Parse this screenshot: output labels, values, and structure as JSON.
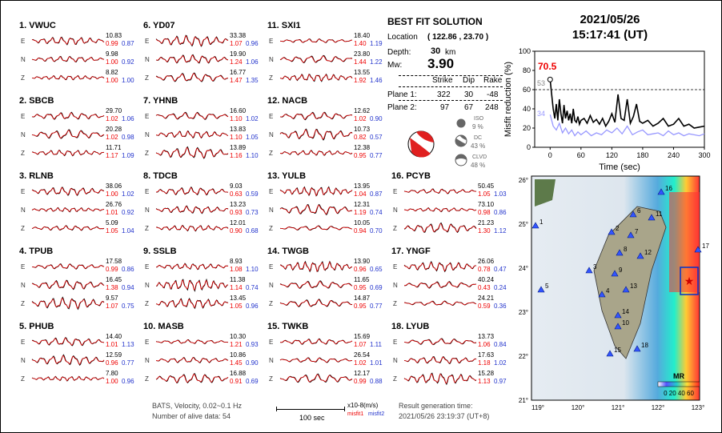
{
  "stations": [
    {
      "title": "1.  VWUC",
      "comps": [
        {
          "c": "E",
          "amp": "10.83",
          "m1": "0.99",
          "m2": "0.87"
        },
        {
          "c": "N",
          "amp": "9.98",
          "m1": "1.00",
          "m2": "0.92"
        },
        {
          "c": "Z",
          "amp": "8.82",
          "m1": "1.00",
          "m2": "1.00"
        }
      ]
    },
    {
      "title": "2.  SBCB",
      "comps": [
        {
          "c": "E",
          "amp": "29.70",
          "m1": "1.02",
          "m2": "1.06"
        },
        {
          "c": "N",
          "amp": "20.28",
          "m1": "1.02",
          "m2": "0.98"
        },
        {
          "c": "Z",
          "amp": "11.71",
          "m1": "1.17",
          "m2": "1.09"
        }
      ]
    },
    {
      "title": "3.  RLNB",
      "comps": [
        {
          "c": "E",
          "amp": "38.06",
          "m1": "1.00",
          "m2": "1.02"
        },
        {
          "c": "N",
          "amp": "26.76",
          "m1": "1.01",
          "m2": "0.92"
        },
        {
          "c": "Z",
          "amp": "5.09",
          "m1": "1.05",
          "m2": "1.04"
        }
      ]
    },
    {
      "title": "4.  TPUB",
      "comps": [
        {
          "c": "E",
          "amp": "17.58",
          "m1": "0.99",
          "m2": "0.86"
        },
        {
          "c": "N",
          "amp": "16.45",
          "m1": "1.38",
          "m2": "0.94"
        },
        {
          "c": "Z",
          "amp": "9.57",
          "m1": "1.07",
          "m2": "0.75"
        }
      ]
    },
    {
      "title": "5.  PHUB",
      "comps": [
        {
          "c": "E",
          "amp": "14.40",
          "m1": "1.01",
          "m2": "1.13"
        },
        {
          "c": "N",
          "amp": "12.59",
          "m1": "0.96",
          "m2": "0.77"
        },
        {
          "c": "Z",
          "amp": "7.80",
          "m1": "1.00",
          "m2": "0.96"
        }
      ]
    },
    {
      "title": "6.  YD07",
      "comps": [
        {
          "c": "E",
          "amp": "33.38",
          "m1": "1.07",
          "m2": "0.96"
        },
        {
          "c": "N",
          "amp": "19.90",
          "m1": "1.24",
          "m2": "1.06"
        },
        {
          "c": "Z",
          "amp": "16.77",
          "m1": "1.47",
          "m2": "1.35"
        }
      ]
    },
    {
      "title": "7.  YHNB",
      "comps": [
        {
          "c": "E",
          "amp": "16.60",
          "m1": "1.10",
          "m2": "1.02"
        },
        {
          "c": "N",
          "amp": "13.83",
          "m1": "1.10",
          "m2": "1.05"
        },
        {
          "c": "Z",
          "amp": "13.89",
          "m1": "1.16",
          "m2": "1.10"
        }
      ]
    },
    {
      "title": "8.  TDCB",
      "comps": [
        {
          "c": "E",
          "amp": "9.03",
          "m1": "0.63",
          "m2": "0.59"
        },
        {
          "c": "N",
          "amp": "13.23",
          "m1": "0.93",
          "m2": "0.73"
        },
        {
          "c": "Z",
          "amp": "12.01",
          "m1": "0.90",
          "m2": "0.68"
        }
      ]
    },
    {
      "title": "9.  SSLB",
      "comps": [
        {
          "c": "E",
          "amp": "8.93",
          "m1": "1.08",
          "m2": "1.10"
        },
        {
          "c": "N",
          "amp": "11.38",
          "m1": "1.14",
          "m2": "0.74"
        },
        {
          "c": "Z",
          "amp": "13.45",
          "m1": "1.05",
          "m2": "0.96"
        }
      ]
    },
    {
      "title": "10.  MASB",
      "comps": [
        {
          "c": "E",
          "amp": "10.30",
          "m1": "1.21",
          "m2": "0.93"
        },
        {
          "c": "N",
          "amp": "10.86",
          "m1": "1.45",
          "m2": "0.90"
        },
        {
          "c": "Z",
          "amp": "16.88",
          "m1": "0.91",
          "m2": "0.69"
        }
      ]
    },
    {
      "title": "11.  SXI1",
      "comps": [
        {
          "c": "E",
          "amp": "18.40",
          "m1": "1.40",
          "m2": "1.19"
        },
        {
          "c": "N",
          "amp": "23.80",
          "m1": "1.44",
          "m2": "1.22"
        },
        {
          "c": "Z",
          "amp": "13.55",
          "m1": "1.92",
          "m2": "1.46"
        }
      ]
    },
    {
      "title": "12.  NACB",
      "comps": [
        {
          "c": "E",
          "amp": "12.62",
          "m1": "1.02",
          "m2": "0.90"
        },
        {
          "c": "N",
          "amp": "10.73",
          "m1": "0.82",
          "m2": "0.57"
        },
        {
          "c": "Z",
          "amp": "12.38",
          "m1": "0.95",
          "m2": "0.77"
        }
      ]
    },
    {
      "title": "13.  YULB",
      "comps": [
        {
          "c": "E",
          "amp": "13.95",
          "m1": "1.04",
          "m2": "0.87"
        },
        {
          "c": "N",
          "amp": "12.31",
          "m1": "1.19",
          "m2": "0.74"
        },
        {
          "c": "Z",
          "amp": "10.05",
          "m1": "0.94",
          "m2": "0.70"
        }
      ]
    },
    {
      "title": "14.  TWGB",
      "comps": [
        {
          "c": "E",
          "amp": "13.90",
          "m1": "0.96",
          "m2": "0.65"
        },
        {
          "c": "N",
          "amp": "11.65",
          "m1": "0.95",
          "m2": "0.69"
        },
        {
          "c": "Z",
          "amp": "14.87",
          "m1": "0.95",
          "m2": "0.77"
        }
      ]
    },
    {
      "title": "15.  TWKB",
      "comps": [
        {
          "c": "E",
          "amp": "15.69",
          "m1": "1.07",
          "m2": "1.11"
        },
        {
          "c": "N",
          "amp": "26.54",
          "m1": "1.02",
          "m2": "1.01"
        },
        {
          "c": "Z",
          "amp": "12.17",
          "m1": "0.99",
          "m2": "0.88"
        }
      ]
    },
    {
      "title": "16.  PCYB",
      "comps": [
        {
          "c": "E",
          "amp": "50.45",
          "m1": "1.05",
          "m2": "1.03"
        },
        {
          "c": "N",
          "amp": "73.10",
          "m1": "0.98",
          "m2": "0.86"
        },
        {
          "c": "Z",
          "amp": "21.23",
          "m1": "1.30",
          "m2": "1.12"
        }
      ]
    },
    {
      "title": "17.  YNGF",
      "comps": [
        {
          "c": "E",
          "amp": "26.06",
          "m1": "0.78",
          "m2": "0.47"
        },
        {
          "c": "N",
          "amp": "40.24",
          "m1": "0.43",
          "m2": "0.24"
        },
        {
          "c": "Z",
          "amp": "24.21",
          "m1": "0.59",
          "m2": "0.36"
        }
      ]
    },
    {
      "title": "18.  LYUB",
      "comps": [
        {
          "c": "E",
          "amp": "13.73",
          "m1": "1.06",
          "m2": "0.84"
        },
        {
          "c": "N",
          "amp": "17.63",
          "m1": "1.18",
          "m2": "1.02"
        },
        {
          "c": "Z",
          "amp": "15.28",
          "m1": "1.13",
          "m2": "0.97"
        }
      ]
    }
  ],
  "bestfit": {
    "title": "BEST FIT SOLUTION",
    "location_label": "Location",
    "location": "( 122.86 , 23.70 )",
    "depth_label": "Depth:",
    "depth": "30",
    "depth_unit": "km",
    "mw_label": "Mw:",
    "mw": "3.90",
    "headers": [
      "Strike",
      "Dip",
      "Rake"
    ],
    "plane1_label": "Plane 1:",
    "plane1": [
      "322",
      "30",
      "-48"
    ],
    "plane2_label": "Plane 2:",
    "plane2": [
      "97",
      "67",
      "248"
    ],
    "iso_label": "ISO",
    "iso": "9 %",
    "dc_label": "DC",
    "dc": "43 %",
    "clvd_label": "CLVD",
    "clvd": "48 %"
  },
  "datetime": {
    "date": "2021/05/26",
    "time": "15:17:41  (UT)"
  },
  "footer": {
    "info": "BATS, Velocity, 0.02~0.1 Hz",
    "alive": "Number of alive data: 54",
    "scale": "100 sec",
    "units": "x10-8(m/s)",
    "misfit1": "misfit1",
    "misfit2": "misfit2",
    "result_label": "Result generation time:",
    "result_time": "2021/05/26 23:19:37 (UT+8)"
  },
  "colors": {
    "observed": "#000000",
    "synthetic": "#e00000",
    "misfit2": "#2233cc",
    "mr_curve": "#9999ff"
  },
  "chart_data": {
    "type": "line",
    "xlabel": "Time (sec)",
    "ylabel": "Misfit reduction (%)",
    "xlim": [
      -30,
      300
    ],
    "ylim": [
      0,
      100
    ],
    "xticks": [
      0,
      60,
      120,
      180,
      240,
      300
    ],
    "yticks": [
      0,
      20,
      40,
      60,
      80,
      100
    ],
    "reference_line": 60,
    "best_label": "70.5",
    "best2_label": "53",
    "best3_label": "34",
    "series": [
      {
        "color": "#000000",
        "x": [
          0,
          3,
          6,
          9,
          12,
          15,
          18,
          21,
          24,
          27,
          30,
          33,
          36,
          39,
          42,
          45,
          48,
          51,
          54,
          57,
          60,
          66,
          72,
          78,
          84,
          90,
          96,
          102,
          108,
          114,
          120,
          126,
          132,
          138,
          144,
          150,
          156,
          162,
          168,
          174,
          180,
          190,
          200,
          210,
          220,
          230,
          240,
          250,
          260,
          270,
          280,
          290,
          300
        ],
        "y": [
          70.5,
          55,
          40,
          30,
          45,
          28,
          50,
          35,
          25,
          44,
          30,
          38,
          28,
          35,
          25,
          40,
          28,
          26,
          32,
          24,
          28,
          30,
          25,
          33,
          26,
          29,
          24,
          30,
          22,
          27,
          35,
          26,
          55,
          30,
          28,
          50,
          25,
          32,
          45,
          27,
          25,
          28,
          22,
          25,
          30,
          22,
          24,
          30,
          22,
          24,
          20,
          21,
          22
        ]
      },
      {
        "color": "#9999ff",
        "x": [
          0,
          6,
          12,
          18,
          24,
          30,
          36,
          42,
          48,
          54,
          60,
          70,
          80,
          90,
          100,
          110,
          120,
          130,
          140,
          150,
          160,
          170,
          180,
          190,
          200,
          210,
          220,
          230,
          240,
          250,
          260,
          270,
          280,
          290,
          300
        ],
        "y": [
          34,
          22,
          18,
          25,
          15,
          20,
          14,
          18,
          12,
          16,
          13,
          17,
          12,
          15,
          13,
          18,
          15,
          20,
          14,
          22,
          13,
          16,
          18,
          13,
          14,
          15,
          12,
          17,
          13,
          15,
          12,
          14,
          13,
          12,
          14
        ]
      }
    ]
  },
  "map": {
    "lat_labels": [
      "26°",
      "25°",
      "24°",
      "23°",
      "22°",
      "21°"
    ],
    "lon_labels": [
      "119°",
      "120°",
      "121°",
      "122°",
      "123°"
    ],
    "station_labels": [
      "1",
      "2",
      "3",
      "4",
      "5",
      "6",
      "7",
      "8",
      "9",
      "10",
      "11",
      "12",
      "13",
      "14",
      "15",
      "16",
      "17",
      "18"
    ],
    "legend_title": "MR",
    "legend_ticks": "0 20 40 60"
  }
}
